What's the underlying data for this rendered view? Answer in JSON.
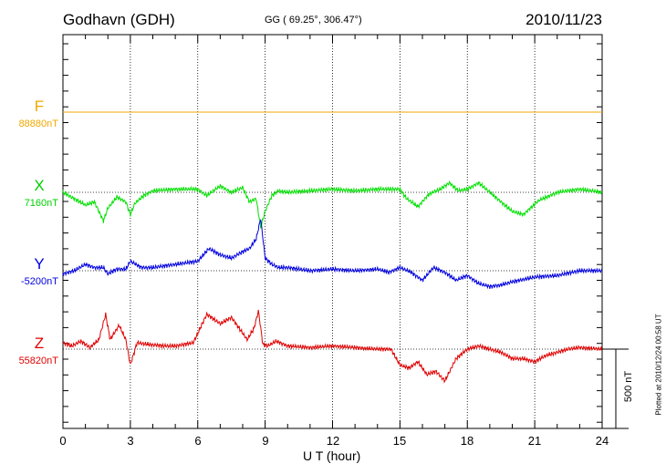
{
  "header": {
    "station": "Godhavn (GDH)",
    "coords": "GG ( 69.25°, 306.47°)",
    "date": "2010/11/23"
  },
  "footer": {
    "plotted": "Plotted at 2010/12/24 00:58 UT"
  },
  "colors": {
    "F": "#f0a800",
    "X": "#00e000",
    "Y": "#0000e0",
    "Z": "#e00000"
  },
  "chart_data": {
    "type": "line",
    "title": "Godhavn (GDH)",
    "xlabel": "U T (hour)",
    "xlim": [
      0,
      24
    ],
    "xticks": [
      "0",
      "3",
      "6",
      "9",
      "12",
      "15",
      "18",
      "21",
      "24"
    ],
    "grid": true,
    "scale_bar": {
      "label": "500 nT",
      "value_nT": 500
    },
    "series": [
      {
        "name": "F",
        "baseline_label": "88880nT",
        "baseline_nT": 88880,
        "x": [
          0,
          24
        ],
        "y": [
          0,
          0
        ]
      },
      {
        "name": "X",
        "baseline_label": "7160nT",
        "baseline_nT": 7160,
        "x": [
          0,
          0.5,
          1.0,
          1.4,
          1.8,
          2.0,
          2.4,
          2.8,
          3.0,
          3.2,
          3.6,
          4.0,
          5.0,
          6.0,
          6.4,
          7.0,
          7.5,
          8.0,
          8.3,
          8.6,
          8.8,
          9.0,
          9.3,
          9.6,
          10.0,
          11.0,
          12.0,
          13.0,
          14.0,
          15.0,
          15.3,
          15.8,
          16.3,
          16.8,
          17.2,
          17.6,
          18.0,
          18.5,
          19.0,
          19.5,
          20.0,
          20.5,
          20.8,
          21.2,
          21.7,
          22.0,
          22.5,
          23.0,
          23.5,
          24.0
        ],
        "y": [
          0,
          -40,
          -80,
          -60,
          -180,
          -100,
          -30,
          -60,
          -140,
          -70,
          -20,
          10,
          20,
          20,
          -20,
          40,
          0,
          30,
          -60,
          -40,
          -220,
          -120,
          -20,
          10,
          0,
          10,
          20,
          10,
          20,
          20,
          -40,
          -90,
          -10,
          20,
          60,
          10,
          20,
          60,
          0,
          -60,
          -120,
          -140,
          -100,
          -50,
          -20,
          0,
          10,
          20,
          10,
          0
        ]
      },
      {
        "name": "Y",
        "baseline_label": "-5200nT",
        "baseline_nT": -5200,
        "x": [
          0,
          0.5,
          1.0,
          1.4,
          1.8,
          2.0,
          2.4,
          2.8,
          3.0,
          3.5,
          4.0,
          5.0,
          6.0,
          6.5,
          7.0,
          7.5,
          8.0,
          8.3,
          8.6,
          8.8,
          9.0,
          9.3,
          9.6,
          10.0,
          11.0,
          12.0,
          13.0,
          14.0,
          14.5,
          15.0,
          15.5,
          16.0,
          16.5,
          17.0,
          17.5,
          18.0,
          18.5,
          19.0,
          19.5,
          20.0,
          21.0,
          22.0,
          23.0,
          24.0
        ],
        "y": [
          -20,
          0,
          40,
          20,
          20,
          -20,
          10,
          10,
          60,
          20,
          20,
          40,
          60,
          140,
          100,
          80,
          120,
          140,
          200,
          330,
          80,
          40,
          20,
          20,
          0,
          10,
          0,
          10,
          -10,
          20,
          -10,
          -60,
          20,
          -10,
          -60,
          -30,
          -80,
          -100,
          -90,
          -70,
          -40,
          -30,
          0,
          0
        ]
      },
      {
        "name": "Z",
        "baseline_label": "55820nT",
        "baseline_nT": 55820,
        "x": [
          0,
          0.4,
          0.8,
          1.2,
          1.6,
          1.9,
          2.1,
          2.5,
          2.8,
          3.0,
          3.3,
          3.8,
          4.5,
          5.0,
          5.8,
          6.4,
          7.0,
          7.5,
          7.9,
          8.2,
          8.5,
          8.7,
          8.9,
          9.1,
          9.5,
          10.0,
          11.0,
          12.0,
          13.0,
          14.0,
          14.6,
          15.0,
          15.4,
          15.8,
          16.2,
          16.6,
          17.0,
          17.5,
          18.0,
          18.5,
          19.0,
          19.5,
          20.0,
          20.5,
          21.0,
          21.5,
          22.0,
          22.5,
          23.0,
          24.0
        ],
        "y": [
          40,
          20,
          50,
          10,
          60,
          220,
          60,
          150,
          60,
          -100,
          40,
          30,
          20,
          20,
          40,
          220,
          160,
          200,
          120,
          60,
          130,
          240,
          30,
          20,
          50,
          20,
          10,
          20,
          10,
          0,
          0,
          -100,
          -120,
          -80,
          -160,
          -140,
          -200,
          -60,
          0,
          20,
          0,
          -20,
          -60,
          -60,
          -80,
          -40,
          -20,
          0,
          10,
          0
        ]
      }
    ]
  }
}
